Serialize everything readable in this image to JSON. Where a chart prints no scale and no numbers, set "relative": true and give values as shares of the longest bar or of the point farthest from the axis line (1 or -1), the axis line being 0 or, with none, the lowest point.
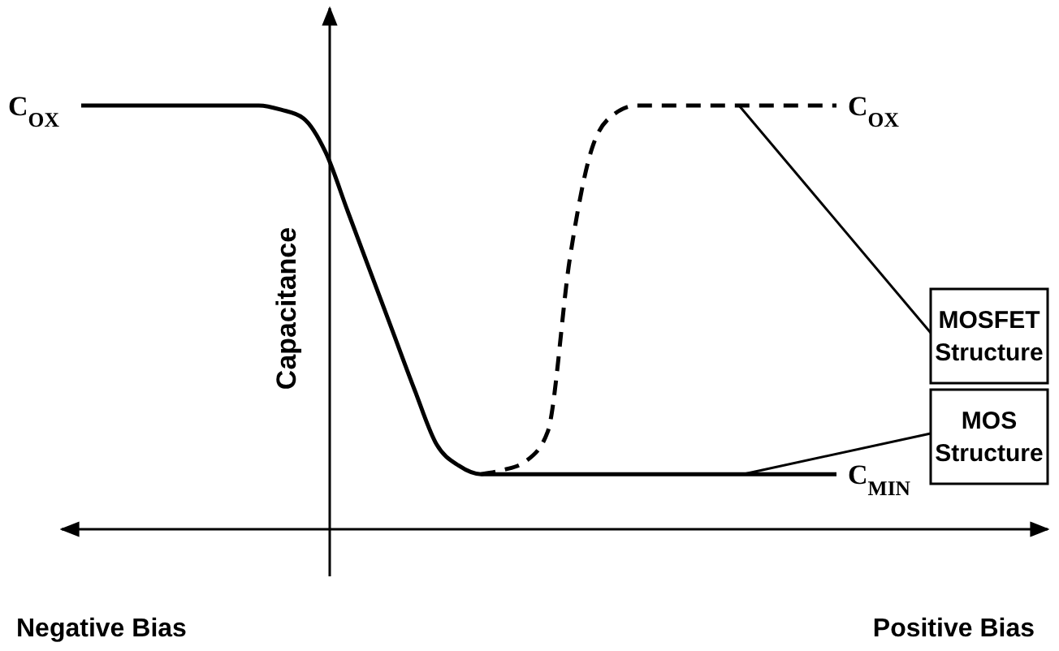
{
  "chart_data": {
    "type": "line",
    "relative": true,
    "ylabel": "Capacitance",
    "categories": [
      null,
      null,
      null,
      null,
      null,
      null,
      null,
      null,
      null,
      null,
      null,
      null,
      null,
      null,
      null,
      null,
      null,
      null,
      null,
      null,
      null,
      null,
      null,
      null,
      null,
      null,
      null,
      null,
      null,
      null,
      null,
      null,
      null,
      null,
      null
    ],
    "series": [
      {
        "name": "MOSFET Structure",
        "color": "#000000",
        "line_style": "dashed",
        "values": [
          null,
          null,
          null,
          null,
          null,
          null,
          null,
          null,
          null,
          null,
          null,
          null,
          null,
          null,
          null,
          null,
          null,
          null,
          0.13,
          0.14,
          0.16,
          0.23,
          0.64,
          0.9,
          0.98,
          1,
          1,
          1,
          1,
          1,
          1,
          1,
          1,
          1,
          1
        ]
      },
      {
        "name": "MOS Structure",
        "color": "#000000",
        "line_style": "solid",
        "values": [
          1,
          1,
          1,
          1,
          1,
          1,
          1,
          1,
          1,
          0.99,
          0.97,
          0.89,
          0.75,
          0.61,
          0.47,
          0.33,
          0.2,
          0.15,
          0.13,
          0.13,
          0.13,
          0.13,
          0.13,
          0.13,
          0.13,
          0.13,
          0.13,
          0.13,
          0.13,
          0.13,
          0.13,
          0.13,
          0.13,
          0.13,
          0.13
        ]
      }
    ],
    "annotations": [
      "C$_{OX}$",
      "C$_{OX}$",
      "C$_{MIN}$",
      "Negative Bias",
      "Positive Bias"
    ]
  }
}
